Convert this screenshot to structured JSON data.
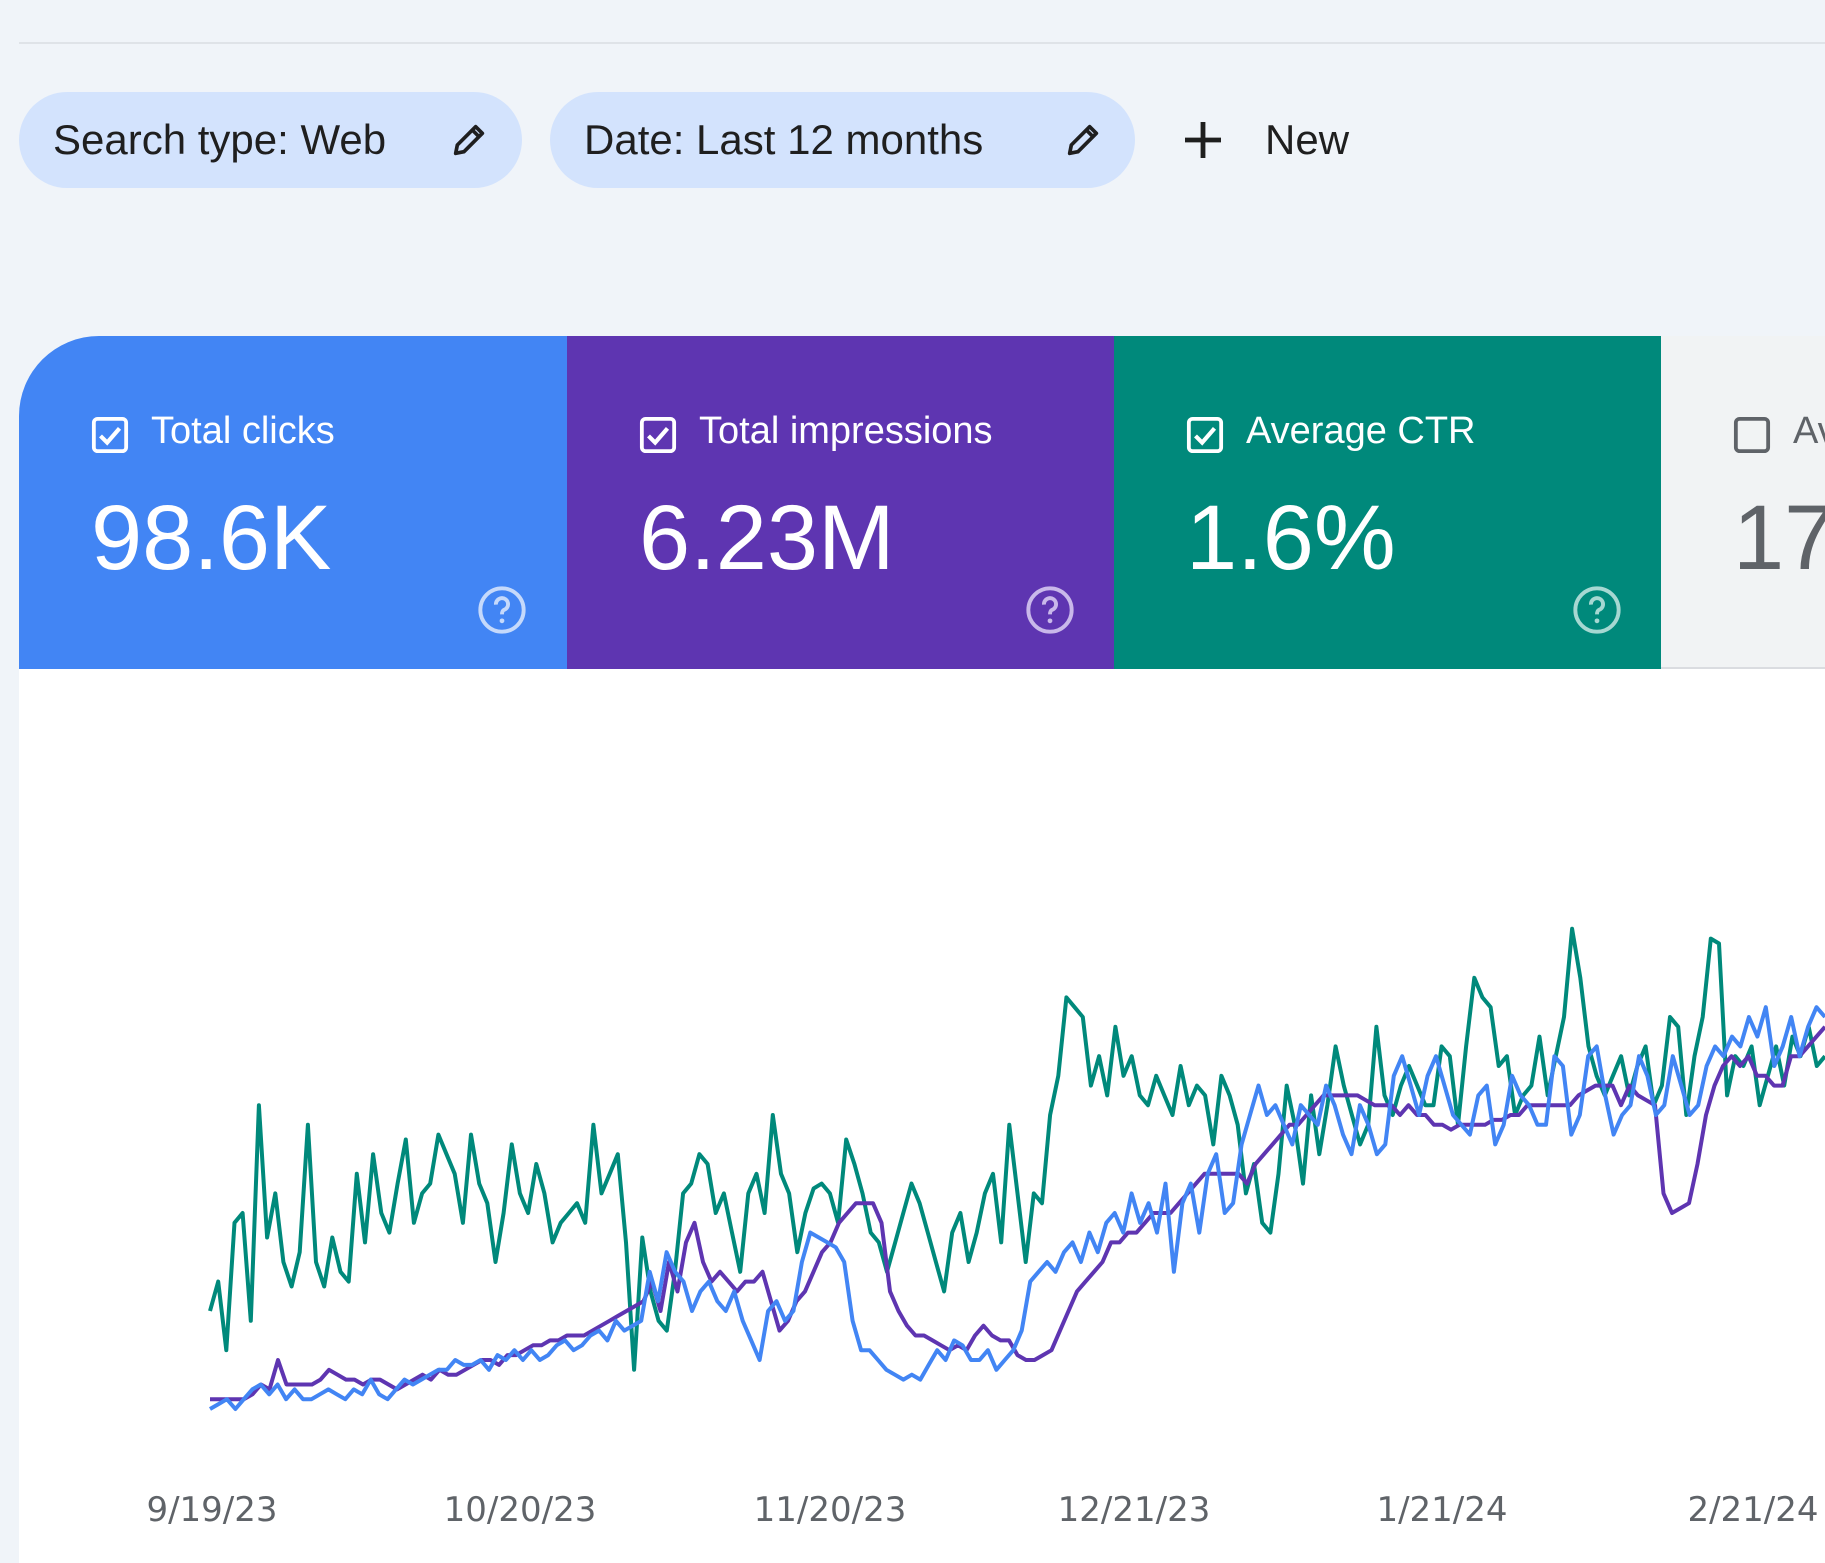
{
  "filters": {
    "search_type": "Search type: Web",
    "date": "Date: Last 12 months",
    "new_label": "New"
  },
  "cards": {
    "clicks": {
      "label": "Total clicks",
      "value": "98.6K",
      "checked": true,
      "color": "#4285f4"
    },
    "impressions": {
      "label": "Total impressions",
      "value": "6.23M",
      "checked": true,
      "color": "#5e35b1"
    },
    "ctr": {
      "label": "Average CTR",
      "value": "1.6%",
      "checked": true,
      "color": "#00897b"
    },
    "position": {
      "label": "Av",
      "value": "17",
      "checked": false
    }
  },
  "chart_data": {
    "type": "line",
    "x_ticks": [
      "9/19/23",
      "10/20/23",
      "11/20/23",
      "12/21/23",
      "1/21/24",
      "2/21/24"
    ],
    "x_range": [
      "9/19/23",
      "2/28/24"
    ],
    "y_scale": "independent per series, no labels",
    "grid": false,
    "series": [
      {
        "name": "Average CTR",
        "color": "#00897b",
        "values": [
          20,
          26,
          12,
          38,
          40,
          18,
          62,
          35,
          44,
          30,
          25,
          32,
          58,
          30,
          25,
          35,
          28,
          26,
          48,
          34,
          52,
          40,
          36,
          46,
          55,
          38,
          44,
          46,
          56,
          52,
          48,
          38,
          56,
          46,
          42,
          30,
          40,
          54,
          44,
          40,
          50,
          44,
          34,
          38,
          40,
          42,
          38,
          58,
          44,
          48,
          52,
          34,
          8,
          35,
          24,
          18,
          16,
          28,
          44,
          46,
          52,
          50,
          40,
          44,
          36,
          28,
          44,
          48,
          40,
          60,
          48,
          44,
          32,
          40,
          45,
          46,
          44,
          38,
          55,
          50,
          44,
          36,
          34,
          28,
          34,
          40,
          46,
          42,
          36,
          30,
          24,
          36,
          40,
          30,
          36,
          44,
          48,
          34,
          58,
          44,
          30,
          44,
          42,
          60,
          68,
          84,
          82,
          80,
          66,
          72,
          64,
          78,
          68,
          72,
          64,
          62,
          68,
          64,
          60,
          70,
          62,
          66,
          64,
          54,
          68,
          64,
          58,
          44,
          50,
          38,
          36,
          48,
          66,
          58,
          46,
          64,
          52,
          62,
          74,
          66,
          60,
          54,
          58,
          78,
          64,
          60,
          66,
          70,
          66,
          62,
          62,
          74,
          72,
          58,
          74,
          88,
          84,
          82,
          70,
          72,
          60,
          64,
          66,
          76,
          64,
          72,
          80,
          98,
          88,
          74,
          68,
          64,
          68,
          72,
          64,
          70,
          74,
          62,
          66,
          80,
          78,
          60,
          72,
          80,
          96,
          95,
          64,
          72,
          70,
          74,
          62,
          68,
          74,
          66,
          76,
          72,
          78,
          70,
          72
        ]
      },
      {
        "name": "Total impressions",
        "color": "#5e35b1",
        "values": [
          2,
          2,
          2,
          2,
          2,
          3,
          5,
          4,
          10,
          5,
          5,
          5,
          5,
          6,
          8,
          7,
          6,
          6,
          5,
          6,
          6,
          5,
          4,
          5,
          6,
          7,
          6,
          8,
          7,
          7,
          8,
          9,
          10,
          10,
          9,
          11,
          11,
          12,
          13,
          13,
          14,
          14,
          15,
          15,
          15,
          16,
          17,
          18,
          19,
          20,
          21,
          22,
          26,
          20,
          30,
          24,
          34,
          38,
          30,
          26,
          28,
          26,
          24,
          26,
          26,
          28,
          22,
          16,
          18,
          22,
          24,
          28,
          32,
          34,
          38,
          40,
          42,
          42,
          42,
          38,
          24,
          20,
          17,
          15,
          15,
          14,
          13,
          12,
          13,
          12,
          15,
          17,
          15,
          14,
          14,
          11,
          10,
          10,
          11,
          12,
          16,
          20,
          24,
          26,
          28,
          30,
          34,
          34,
          36,
          36,
          38,
          40,
          40,
          40,
          42,
          44,
          46,
          48,
          48,
          48,
          48,
          48,
          46,
          50,
          52,
          54,
          56,
          58,
          58,
          60,
          62,
          64,
          64,
          64,
          64,
          64,
          63,
          62,
          62,
          62,
          60,
          62,
          60,
          60,
          58,
          58,
          57,
          58,
          58,
          58,
          58,
          59,
          59,
          60,
          60,
          62,
          62,
          62,
          62,
          62,
          62,
          64,
          65,
          66,
          66,
          66,
          62,
          66,
          64,
          63,
          62,
          44,
          40,
          41,
          42,
          50,
          60,
          66,
          70,
          72,
          70,
          72,
          68,
          68,
          66,
          66,
          72,
          72,
          74,
          76,
          78
        ]
      },
      {
        "name": "Total clicks",
        "color": "#4285f4",
        "values": [
          0,
          1,
          2,
          0,
          2,
          4,
          5,
          3,
          5,
          2,
          4,
          2,
          2,
          3,
          4,
          3,
          2,
          4,
          3,
          6,
          3,
          2,
          4,
          6,
          5,
          6,
          7,
          8,
          8,
          10,
          9,
          9,
          10,
          8,
          11,
          10,
          12,
          10,
          12,
          10,
          11,
          13,
          14,
          12,
          13,
          15,
          16,
          14,
          18,
          16,
          17,
          18,
          28,
          22,
          32,
          28,
          26,
          20,
          24,
          26,
          22,
          20,
          24,
          18,
          14,
          10,
          20,
          22,
          18,
          20,
          30,
          36,
          35,
          34,
          33,
          30,
          18,
          12,
          12,
          10,
          8,
          7,
          6,
          7,
          6,
          9,
          12,
          10,
          14,
          13,
          10,
          10,
          12,
          8,
          10,
          12,
          16,
          26,
          28,
          30,
          28,
          32,
          34,
          30,
          36,
          32,
          38,
          40,
          36,
          44,
          38,
          42,
          36,
          46,
          28,
          42,
          46,
          36,
          48,
          52,
          40,
          42,
          54,
          60,
          66,
          60,
          62,
          58,
          54,
          62,
          60,
          58,
          66,
          62,
          56,
          52,
          62,
          58,
          52,
          54,
          68,
          72,
          66,
          60,
          68,
          72,
          66,
          60,
          58,
          56,
          64,
          66,
          54,
          58,
          68,
          64,
          62,
          58,
          58,
          72,
          70,
          56,
          60,
          72,
          74,
          64,
          56,
          60,
          62,
          72,
          68,
          60,
          62,
          72,
          66,
          60,
          62,
          70,
          74,
          72,
          76,
          74,
          80,
          76,
          82,
          70,
          74,
          80,
          72,
          78,
          82,
          80
        ]
      }
    ]
  }
}
